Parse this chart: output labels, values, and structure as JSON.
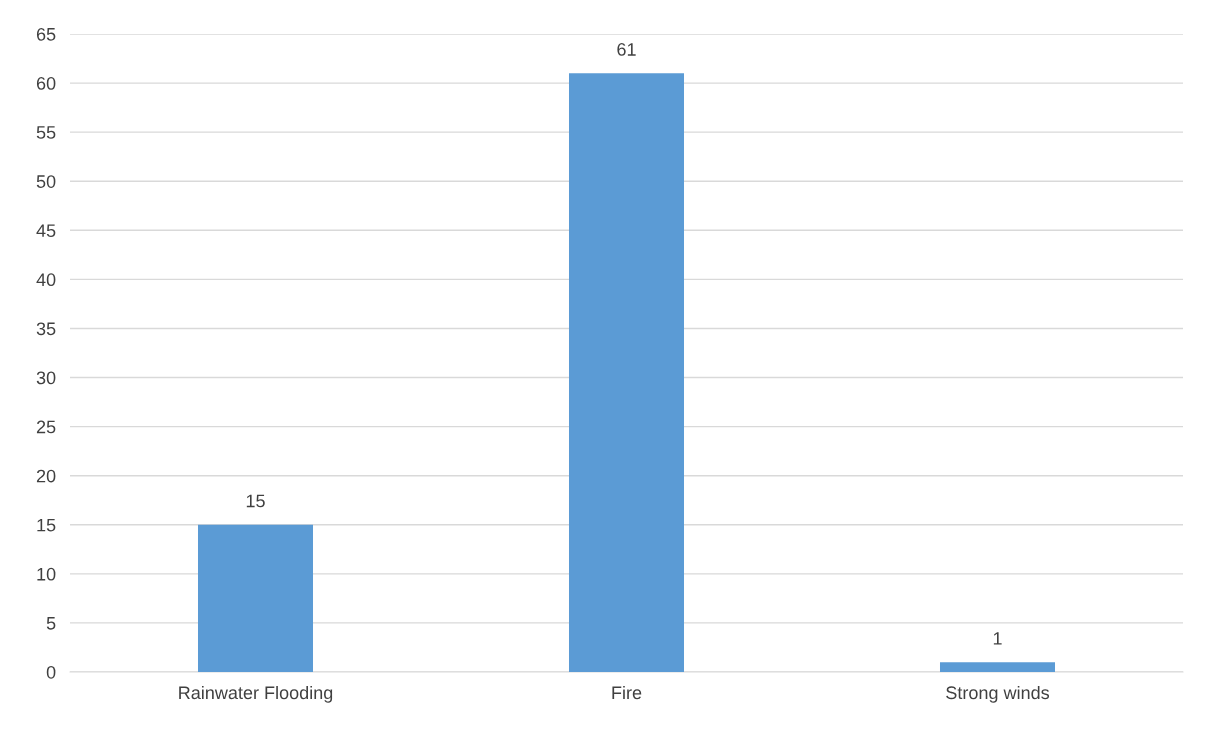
{
  "chart_data": {
    "type": "bar",
    "categories": [
      "Rainwater Flooding",
      "Fire",
      "Strong winds"
    ],
    "values": [
      15,
      61,
      1
    ],
    "color": "#5b9bd5",
    "ylim": [
      0,
      65
    ],
    "yticks": [
      0,
      5,
      10,
      15,
      20,
      25,
      30,
      35,
      40,
      45,
      50,
      55,
      60,
      65
    ],
    "grid": "y",
    "data_labels": true
  }
}
